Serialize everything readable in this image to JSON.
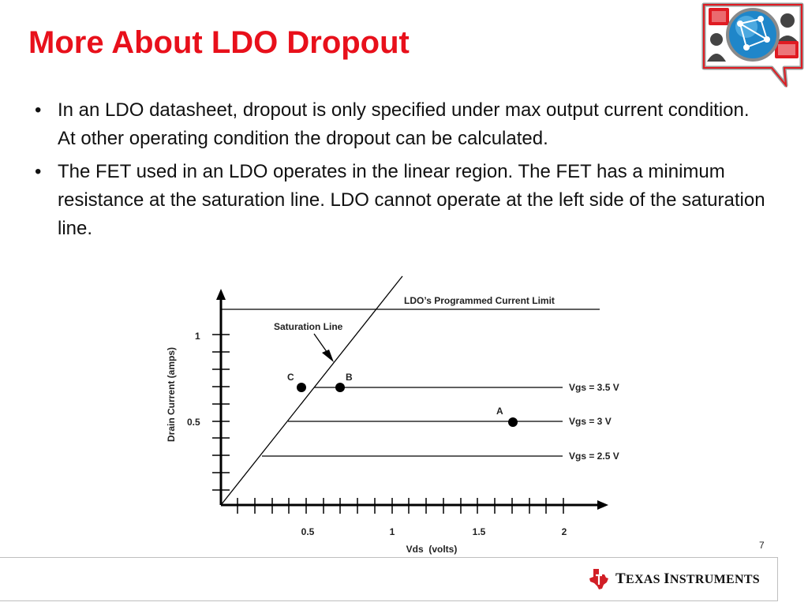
{
  "slide": {
    "title": "More About LDO Dropout",
    "bullets": [
      "In an LDO datasheet, dropout is only specified under max output current condition. At other operating condition the dropout can be calculated.",
      "The FET used in an LDO operates in the linear region. The FET has a minimum resistance at the saturation line. LDO cannot operate at the left side of the saturation line."
    ],
    "page_number": "7"
  },
  "diagram": {
    "labels": {
      "current_limit": "LDO’s Programmed Current Limit",
      "saturation_line": "Saturation Line",
      "y_axis": "Drain Current (amps)",
      "x_axis": "Vds  (volts)"
    },
    "y_ticks": [
      "1",
      "0.5"
    ],
    "x_ticks": [
      "0.5",
      "1",
      "1.5",
      "2"
    ],
    "curves": [
      "Vgs = 3.5 V",
      "Vgs = 3 V",
      "Vgs = 2.5 V"
    ],
    "points": [
      "C",
      "B",
      "A"
    ]
  },
  "footer": {
    "brand_first": "T",
    "brand_rest1": "EXAS ",
    "brand_second": "I",
    "brand_rest2": "NSTRUMENTS"
  }
}
